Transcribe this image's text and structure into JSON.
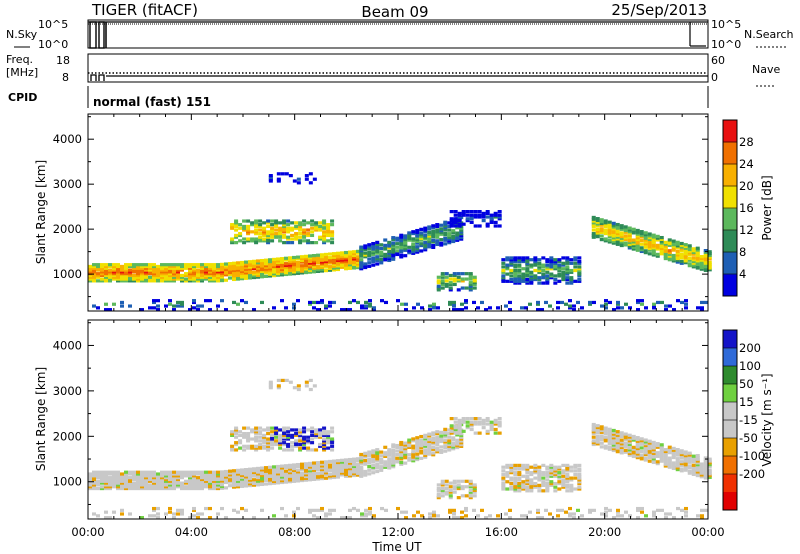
{
  "header": {
    "radar": "TIGER (fitACF)",
    "beam": "Beam 09",
    "date": "25/Sep/2013"
  },
  "side_labels": {
    "nsky": "N.Sky",
    "nsearch": "N.Search",
    "freq_line1": "Freq.",
    "freq_line2": "[MHz]",
    "nave": "Nave",
    "cpid": "CPID"
  },
  "strip_ticks": {
    "nsky_top": "10^5",
    "nsky_bottom": "10^0",
    "nsearch_top": "10^5",
    "nsearch_bottom": "10^0",
    "freq_top": "18",
    "freq_bottom": "8",
    "nave_top": "60",
    "nave_bottom": "0"
  },
  "cpid_text": "normal (fast) 151",
  "colors": {
    "power": [
      "#0000e0",
      "#1e5fb4",
      "#2e8b57",
      "#5cb85c",
      "#f0e000",
      "#f8b000",
      "#f07000",
      "#e81010"
    ],
    "velocity": [
      "#1414c8",
      "#2f6ad8",
      "#2e8b2e",
      "#6fd040",
      "#c8c8c8",
      "#c8c8c8",
      "#e8a000",
      "#f07000",
      "#f03000",
      "#e00000"
    ]
  },
  "chart_data": [
    {
      "type": "heatmap",
      "panel": "power",
      "ylabel": "Slant Range [km]",
      "ylim": [
        180,
        4560
      ],
      "yticks": [
        "1000",
        "2000",
        "3000",
        "4000"
      ],
      "xlim": [
        "00:00",
        "24:00"
      ],
      "colorbar": {
        "label": "Power [dB]",
        "ticks": [
          "4",
          "8",
          "12",
          "16",
          "20",
          "24",
          "28"
        ],
        "range": [
          0,
          32
        ]
      }
    },
    {
      "type": "heatmap",
      "panel": "velocity",
      "ylabel": "Slant Range [km]",
      "ylim": [
        180,
        4560
      ],
      "yticks": [
        "1000",
        "2000",
        "3000",
        "4000"
      ],
      "xlabel": "Time UT",
      "xticks": [
        "00:00",
        "04:00",
        "08:00",
        "12:00",
        "16:00",
        "20:00",
        "00:00"
      ],
      "colorbar": {
        "label": "Velocity [m s⁻¹]",
        "ticks": [
          "200",
          "100",
          "50",
          "15",
          "-15",
          "-50",
          "-100",
          "-200"
        ]
      }
    }
  ]
}
